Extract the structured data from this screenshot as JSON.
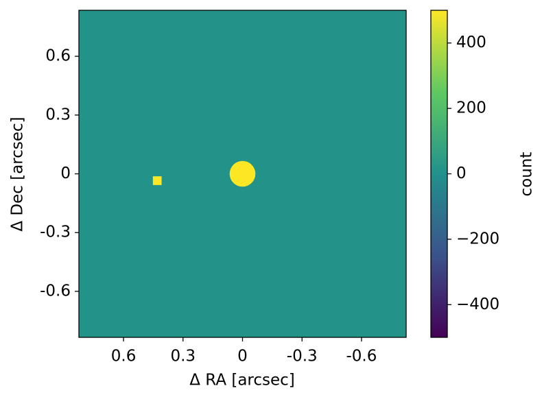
{
  "chart_data": {
    "type": "image",
    "xlabel": "Δ RA [arcsec]",
    "ylabel": "Δ Dec [arcsec]",
    "xlim": [
      0.825,
      -0.825
    ],
    "ylim": [
      -0.835,
      0.835
    ],
    "xticks": [
      0.6,
      0.3,
      0,
      -0.3,
      -0.6
    ],
    "yticks": [
      -0.6,
      -0.3,
      0,
      0.3,
      0.6
    ],
    "colormap": "viridis",
    "background": 10,
    "sources": [
      {
        "x": 0,
        "y": 0,
        "size": 0.065,
        "value": 500,
        "shape": "circle"
      },
      {
        "x": 0.43,
        "y": -0.035,
        "size": 0.022,
        "value": 500,
        "shape": "square"
      }
    ],
    "colorbar": {
      "label": "count",
      "lim": [
        -500,
        500
      ],
      "ticks": [
        {
          "value": -400,
          "label": "−400"
        },
        {
          "value": -200,
          "label": "−200"
        },
        0,
        200,
        400
      ]
    }
  }
}
